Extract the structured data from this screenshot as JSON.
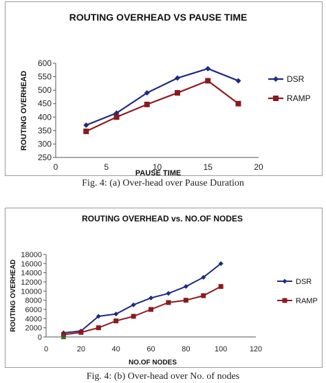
{
  "colors": {
    "dsr": "#1f2a80",
    "ramp": "#8b1a1f",
    "extra": "#2e6b1e"
  },
  "captions": {
    "fig4a": "Fig. 4: (a) Over-head over Pause Duration",
    "fig4b": "Fig. 4: (b) Over-head over No. of nodes"
  },
  "chart_data": [
    {
      "type": "line",
      "title": "ROUTING OVERHEAD VS PAUSE TIME",
      "xlabel": "PAUSE TIME",
      "ylabel": "ROUTING OVERHEAD",
      "xlim": [
        0,
        20
      ],
      "ylim": [
        250,
        600
      ],
      "x_ticks": [
        0,
        5,
        10,
        15,
        20
      ],
      "y_ticks": [
        250,
        300,
        350,
        400,
        450,
        500,
        550,
        600
      ],
      "grid": false,
      "legend": "right",
      "series": [
        {
          "name": "DSR",
          "marker": "diamond",
          "color": "#1f2a80",
          "points": [
            [
              3,
              370
            ],
            [
              6,
              415
            ],
            [
              9,
              490
            ],
            [
              12,
              545
            ],
            [
              15,
              580
            ],
            [
              18,
              535
            ]
          ]
        },
        {
          "name": "RAMP",
          "marker": "square",
          "color": "#8b1a1f",
          "points": [
            [
              3,
              347
            ],
            [
              6,
              400
            ],
            [
              9,
              447
            ],
            [
              12,
              490
            ],
            [
              15,
              535
            ],
            [
              18,
              450
            ]
          ]
        }
      ]
    },
    {
      "type": "line",
      "title": "ROUTING OVERHEAD  vs. NO.OF NODES",
      "xlabel": "NO.OF NODES",
      "ylabel": "ROUTING OVERHEAD",
      "xlim": [
        0,
        120
      ],
      "ylim": [
        0,
        18000
      ],
      "x_ticks": [
        0,
        20,
        40,
        60,
        80,
        100,
        120
      ],
      "y_ticks": [
        0,
        2000,
        4000,
        6000,
        8000,
        10000,
        12000,
        14000,
        16000,
        18000
      ],
      "grid": false,
      "legend": "right",
      "series": [
        {
          "name": "DSR",
          "marker": "diamond",
          "color": "#1f2a80",
          "points": [
            [
              10,
              900
            ],
            [
              20,
              1300
            ],
            [
              30,
              4500
            ],
            [
              40,
              5000
            ],
            [
              50,
              7000
            ],
            [
              60,
              8500
            ],
            [
              70,
              9500
            ],
            [
              80,
              11000
            ],
            [
              90,
              13000
            ],
            [
              100,
              16000
            ]
          ]
        },
        {
          "name": "RAMP",
          "marker": "square",
          "color": "#8b1a1f",
          "points": [
            [
              10,
              500
            ],
            [
              20,
              1000
            ],
            [
              30,
              2000
            ],
            [
              40,
              3500
            ],
            [
              50,
              4500
            ],
            [
              60,
              6000
            ],
            [
              70,
              7500
            ],
            [
              80,
              8000
            ],
            [
              90,
              9000
            ],
            [
              100,
              11000
            ]
          ]
        }
      ],
      "extra_marker": {
        "marker": "triangle",
        "color": "#2e6b1e",
        "point": [
          10,
          0
        ]
      }
    }
  ]
}
